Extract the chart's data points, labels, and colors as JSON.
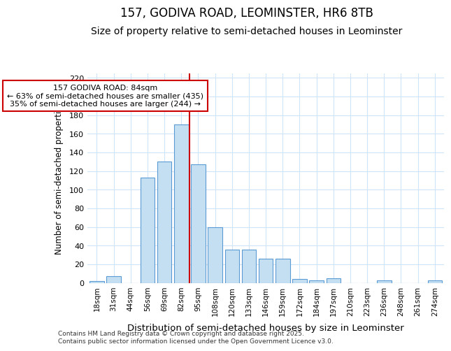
{
  "title": "157, GODIVA ROAD, LEOMINSTER, HR6 8TB",
  "subtitle": "Size of property relative to semi-detached houses in Leominster",
  "xlabel": "Distribution of semi-detached houses by size in Leominster",
  "ylabel": "Number of semi-detached properties",
  "categories": [
    "18sqm",
    "31sqm",
    "44sqm",
    "56sqm",
    "69sqm",
    "82sqm",
    "95sqm",
    "108sqm",
    "120sqm",
    "133sqm",
    "146sqm",
    "159sqm",
    "172sqm",
    "184sqm",
    "197sqm",
    "210sqm",
    "223sqm",
    "236sqm",
    "248sqm",
    "261sqm",
    "274sqm"
  ],
  "values": [
    2,
    7,
    0,
    113,
    130,
    170,
    127,
    60,
    36,
    36,
    26,
    26,
    4,
    3,
    5,
    0,
    0,
    3,
    0,
    0,
    3
  ],
  "bar_color": "#c5dff2",
  "bar_edge_color": "#5b9bd5",
  "vline_color": "#cc0000",
  "vline_x": 5.5,
  "annotation_text": "157 GODIVA ROAD: 84sqm\n← 63% of semi-detached houses are smaller (435)\n35% of semi-detached houses are larger (244) →",
  "annotation_box_edge": "#cc0000",
  "ylim": [
    0,
    225
  ],
  "yticks": [
    0,
    20,
    40,
    60,
    80,
    100,
    120,
    140,
    160,
    180,
    200,
    220
  ],
  "footer_line1": "Contains HM Land Registry data © Crown copyright and database right 2025.",
  "footer_line2": "Contains public sector information licensed under the Open Government Licence v3.0.",
  "bg_color": "#ffffff",
  "grid_color": "#d0e4f7",
  "title_fontsize": 12,
  "subtitle_fontsize": 10
}
